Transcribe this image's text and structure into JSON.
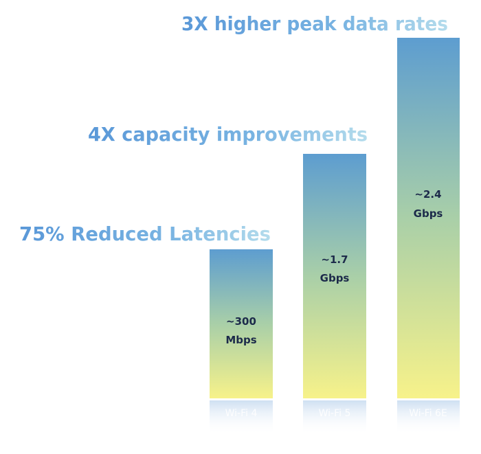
{
  "headlines": [
    "3X higher peak data rates",
    "4X capacity improvements",
    "75% Reduced Latencies"
  ],
  "bars": [
    {
      "category": "Wi-Fi 4",
      "value": "~300",
      "unit": "Mbps"
    },
    {
      "category": "Wi-Fi 5",
      "value": "~1.7",
      "unit": "Gbps"
    },
    {
      "category": "Wi-Fi 6E",
      "value": "~2.4",
      "unit": "Gbps"
    }
  ]
}
